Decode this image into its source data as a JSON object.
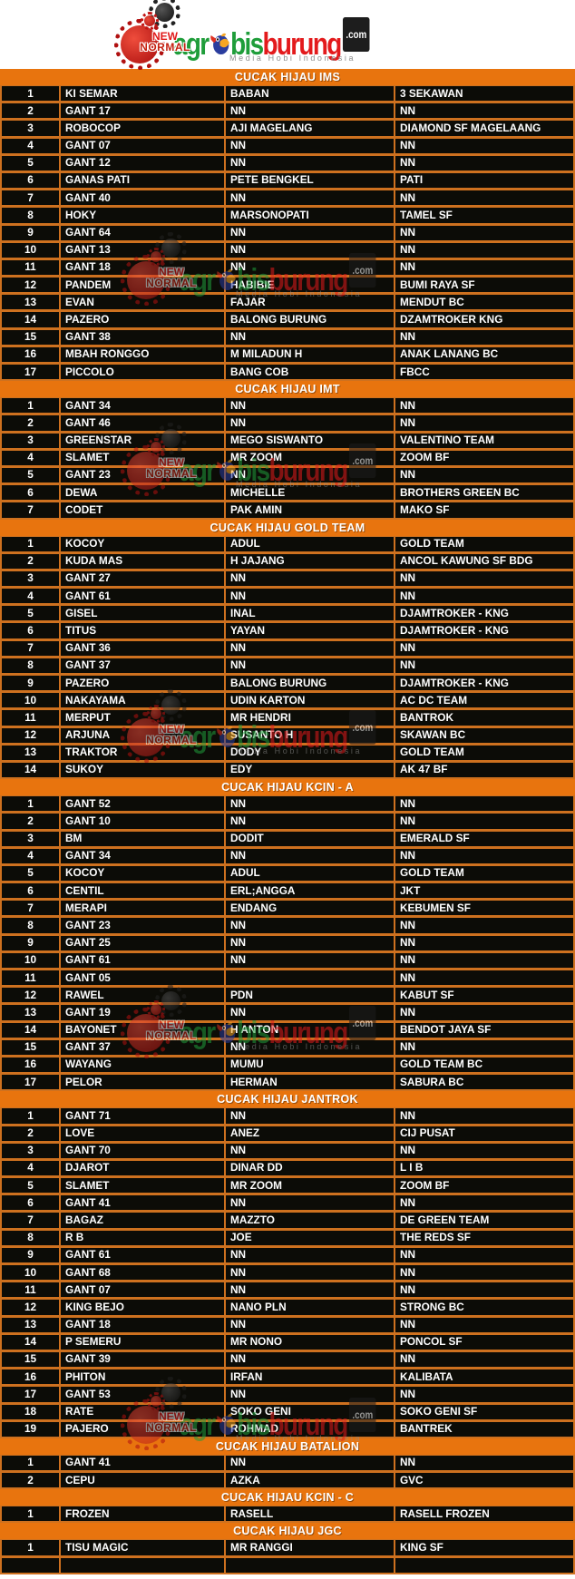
{
  "brand": {
    "badge_new": "NEW",
    "badge_normal": "NORMAL",
    "word_part1": "agr",
    "word_part2": "bis",
    "word_part3": "burung",
    "word_tld": ".com",
    "tagline": "Media Hobi Indonesia",
    "colors": {
      "logo_green": "#1f9d3a",
      "logo_red": "#e31a1c",
      "header_orange": "#e8740e",
      "grid_orange": "#ce711f",
      "row_black": "#0c0c07",
      "badge_red": "#e01818"
    }
  },
  "sections": [
    {
      "title": "CUCAK HIJAU IMS",
      "rows": [
        [
          "1",
          "KI SEMAR",
          "BABAN",
          "3 SEKAWAN"
        ],
        [
          "2",
          "GANT 17",
          "NN",
          "NN"
        ],
        [
          "3",
          "ROBOCOP",
          "AJI MAGELANG",
          "DIAMOND SF MAGELAANG"
        ],
        [
          "4",
          "GANT 07",
          "NN",
          "NN"
        ],
        [
          "5",
          "GANT 12",
          "NN",
          "NN"
        ],
        [
          "6",
          "GANAS PATI",
          "PETE BENGKEL",
          "PATI"
        ],
        [
          "7",
          "GANT 40",
          "NN",
          "NN"
        ],
        [
          "8",
          "HOKY",
          "MARSONOPATI",
          "TAMEL SF"
        ],
        [
          "9",
          "GANT 64",
          "NN",
          "NN"
        ],
        [
          "10",
          "GANT 13",
          "NN",
          "NN"
        ],
        [
          "11",
          "GANT 18",
          "NN",
          "NN"
        ],
        [
          "12",
          "PANDEM",
          "HABIBIE",
          "BUMI RAYA SF"
        ],
        [
          "13",
          "EVAN",
          "FAJAR",
          "MENDUT BC"
        ],
        [
          "14",
          "PAZERO",
          "BALONG BURUNG",
          "DZAMTROKER KNG"
        ],
        [
          "15",
          "GANT 38",
          "NN",
          "NN"
        ],
        [
          "16",
          "MBAH RONGGO",
          "M MILADUN H",
          "ANAK LANANG BC"
        ],
        [
          "17",
          "PICCOLO",
          "BANG COB",
          "FBCC"
        ]
      ]
    },
    {
      "title": "CUCAK HIJAU IMT",
      "rows": [
        [
          "1",
          "GANT 34",
          "NN",
          "NN"
        ],
        [
          "2",
          "GANT 46",
          "NN",
          "NN"
        ],
        [
          "3",
          "GREENSTAR",
          "MEGO SISWANTO",
          "VALENTINO TEAM"
        ],
        [
          "4",
          "SLAMET",
          "MR ZOOM",
          "ZOOM BF"
        ],
        [
          "5",
          "GANT 23",
          "NN",
          "NN"
        ],
        [
          "6",
          "DEWA",
          "MICHELLE",
          "BROTHERS GREEN BC"
        ],
        [
          "7",
          "CODET",
          "PAK AMIN",
          "MAKO SF"
        ]
      ]
    },
    {
      "title": "CUCAK HIJAU GOLD TEAM",
      "rows": [
        [
          "1",
          "KOCOY",
          "ADUL",
          "GOLD TEAM"
        ],
        [
          "2",
          "KUDA MAS",
          "H JAJANG",
          "ANCOL KAWUNG SF BDG"
        ],
        [
          "3",
          "GANT 27",
          "NN",
          "NN"
        ],
        [
          "4",
          "GANT 61",
          "NN",
          "NN"
        ],
        [
          "5",
          "GISEL",
          "INAL",
          "DJAMTROKER - KNG"
        ],
        [
          "6",
          "TITUS",
          "YAYAN",
          "DJAMTROKER - KNG"
        ],
        [
          "7",
          "GANT 36",
          "NN",
          "NN"
        ],
        [
          "8",
          "GANT 37",
          "NN",
          "NN"
        ],
        [
          "9",
          "PAZERO",
          "BALONG BURUNG",
          "DJAMTROKER - KNG"
        ],
        [
          "10",
          "NAKAYAMA",
          "UDIN KARTON",
          "AC DC TEAM"
        ],
        [
          "11",
          "MERPUT",
          "MR HENDRI",
          "BANTROK"
        ],
        [
          "12",
          "ARJUNA",
          "SUSANTO H",
          "SKAWAN BC"
        ],
        [
          "13",
          "TRAKTOR",
          "DODY",
          "GOLD TEAM"
        ],
        [
          "14",
          "SUKOY",
          "EDY",
          "AK 47 BF"
        ]
      ]
    },
    {
      "title": "CUCAK HIJAU KCIN - A",
      "rows": [
        [
          "1",
          "GANT 52",
          "NN",
          "NN"
        ],
        [
          "2",
          "GANT 10",
          "NN",
          "NN"
        ],
        [
          "3",
          "BM",
          "DODIT",
          "EMERALD SF"
        ],
        [
          "4",
          "GANT 34",
          "NN",
          "NN"
        ],
        [
          "5",
          "KOCOY",
          "ADUL",
          "GOLD TEAM"
        ],
        [
          "6",
          "CENTIL",
          "ERL;ANGGA",
          "JKT"
        ],
        [
          "7",
          "MERAPI",
          "ENDANG",
          "KEBUMEN SF"
        ],
        [
          "8",
          "GANT 23",
          "NN",
          "NN"
        ],
        [
          "9",
          "GANT 25",
          "NN",
          "NN"
        ],
        [
          "10",
          "GANT 61",
          "NN",
          "NN"
        ],
        [
          "11",
          "GANT 05",
          "",
          "NN"
        ],
        [
          "12",
          "RAWEL",
          "PDN",
          "KABUT SF"
        ],
        [
          "13",
          "GANT 19",
          "NN",
          "NN"
        ],
        [
          "14",
          "BAYONET",
          "H ANTON",
          "BENDOT JAYA SF"
        ],
        [
          "15",
          "GANT 37",
          "NN",
          "NN"
        ],
        [
          "16",
          "WAYANG",
          "MUMU",
          "GOLD TEAM BC"
        ],
        [
          "17",
          "PELOR",
          "HERMAN",
          "SABURA BC"
        ]
      ]
    },
    {
      "title": "CUCAK HIJAU JANTROK",
      "rows": [
        [
          "1",
          "GANT 71",
          "NN",
          "NN"
        ],
        [
          "2",
          "LOVE",
          "ANEZ",
          "CIJ PUSAT"
        ],
        [
          "3",
          "GANT 70",
          "NN",
          "NN"
        ],
        [
          "4",
          "DJAROT",
          "DINAR DD",
          "L I B"
        ],
        [
          "5",
          "SLAMET",
          "MR ZOOM",
          "ZOOM BF"
        ],
        [
          "6",
          "GANT 41",
          "NN",
          "NN"
        ],
        [
          "7",
          "BAGAZ",
          "MAZZTO",
          "DE GREEN TEAM"
        ],
        [
          "8",
          "R B",
          "JOE",
          "THE REDS SF"
        ],
        [
          "9",
          "GANT 61",
          "NN",
          "NN"
        ],
        [
          "10",
          "GANT 68",
          "NN",
          "NN"
        ],
        [
          "11",
          "GANT 07",
          "NN",
          "NN"
        ],
        [
          "12",
          "KING BEJO",
          "NANO PLN",
          "STRONG BC"
        ],
        [
          "13",
          "GANT 18",
          "NN",
          "NN"
        ],
        [
          "14",
          "P SEMERU",
          "MR NONO",
          "PONCOL SF"
        ],
        [
          "15",
          "GANT 39",
          "NN",
          "NN"
        ],
        [
          "16",
          "PHITON",
          "IRFAN",
          "KALIBATA"
        ],
        [
          "17",
          "GANT 53",
          "NN",
          "NN"
        ],
        [
          "18",
          "RATE",
          "SOKO GENI",
          "SOKO GENI SF"
        ],
        [
          "19",
          "PAJERO",
          "ROHMAD",
          "BANTREK"
        ]
      ]
    },
    {
      "title": "CUCAK HIJAU BATALION",
      "rows": [
        [
          "1",
          "GANT 41",
          "NN",
          "NN"
        ],
        [
          "2",
          "CEPU",
          "AZKA",
          "GVC"
        ]
      ]
    },
    {
      "title": "CUCAK HIJAU KCIN - C",
      "rows": [
        [
          "1",
          "FROZEN",
          "RASELL",
          "RASELL FROZEN"
        ]
      ]
    },
    {
      "title": "CUCAK HIJAU JGC",
      "rows": [
        [
          "1",
          "TISU MAGIC",
          "MR RANGGI",
          "KING SF"
        ],
        [
          "",
          "",
          "",
          ""
        ]
      ]
    }
  ]
}
